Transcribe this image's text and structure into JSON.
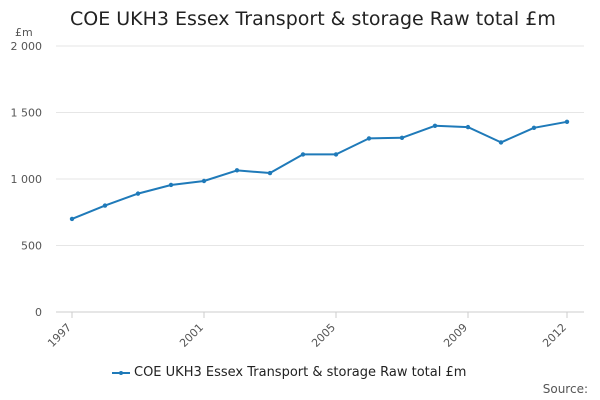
{
  "chart_data": {
    "type": "line",
    "title": "COE UKH3 Essex Transport & storage Raw total £m",
    "ylabel": "£m",
    "xlabel": "",
    "x": [
      1997,
      1998,
      1999,
      2000,
      2001,
      2002,
      2003,
      2004,
      2005,
      2006,
      2007,
      2008,
      2009,
      2010,
      2011,
      2012
    ],
    "series": [
      {
        "name": "COE UKH3 Essex Transport & storage Raw total £m",
        "color": "#1f7ab9",
        "values": [
          700,
          800,
          890,
          955,
          985,
          1065,
          1045,
          1185,
          1185,
          1305,
          1310,
          1400,
          1390,
          1275,
          1385,
          1430
        ]
      }
    ],
    "xticks": [
      "1997",
      "2001",
      "2005",
      "2009",
      "2012"
    ],
    "yticks": [
      "0",
      "500",
      "1 000",
      "1 500",
      "2 000"
    ],
    "ylim": [
      0,
      2000
    ],
    "grid": true,
    "legend": "bottom"
  },
  "footer": {
    "source": "Source:"
  }
}
